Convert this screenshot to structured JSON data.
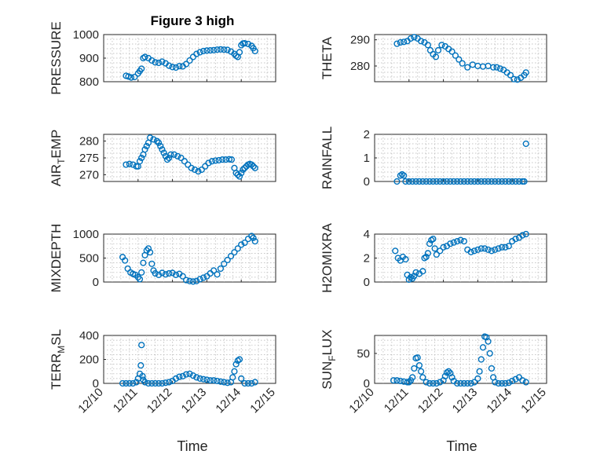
{
  "figure": {
    "title": "Figure 3 high",
    "xlabel": "Time",
    "colors": {
      "marker": "#0072BD",
      "axis": "#262626",
      "grid": "#b3b3b3"
    }
  },
  "chart_data": [
    {
      "type": "scatter",
      "marker": "circle",
      "grid": true,
      "title": "Figure 3 high",
      "ylabel": "PRESSURE",
      "ylim": [
        800,
        1000
      ],
      "yticks": [
        800,
        900,
        1000
      ],
      "xlim": [
        10,
        15
      ],
      "xticks": [
        "12/10",
        "12/11",
        "12/12",
        "12/13",
        "12/14",
        "12/15"
      ],
      "x": [
        10.65,
        10.72,
        10.8,
        10.9,
        11.0,
        11.05,
        11.1,
        11.15,
        11.2,
        11.3,
        11.4,
        11.5,
        11.6,
        11.7,
        11.8,
        11.9,
        12.0,
        12.1,
        12.2,
        12.3,
        12.4,
        12.5,
        12.6,
        12.7,
        12.8,
        12.9,
        13.0,
        13.1,
        13.2,
        13.3,
        13.4,
        13.5,
        13.6,
        13.7,
        13.8,
        13.85,
        13.9,
        13.95,
        14.0,
        14.05,
        14.1,
        14.2,
        14.3,
        14.35,
        14.4
      ],
      "y": [
        825,
        822,
        818,
        820,
        835,
        845,
        855,
        900,
        905,
        900,
        890,
        882,
        880,
        885,
        878,
        868,
        862,
        860,
        866,
        865,
        875,
        890,
        905,
        918,
        925,
        930,
        932,
        933,
        934,
        936,
        937,
        936,
        935,
        928,
        918,
        910,
        905,
        925,
        955,
        962,
        963,
        960,
        952,
        942,
        930
      ]
    },
    {
      "type": "scatter",
      "marker": "circle",
      "grid": true,
      "ylabel": "THETA",
      "ylim": [
        274,
        292
      ],
      "yticks": [
        280,
        290
      ],
      "xlim": [
        10,
        15
      ],
      "xticks": [
        "12/10",
        "12/11",
        "12/12",
        "12/13",
        "12/14",
        "12/15"
      ],
      "x": [
        10.65,
        10.75,
        10.85,
        10.95,
        11.05,
        11.15,
        11.25,
        11.35,
        11.45,
        11.55,
        11.62,
        11.7,
        11.78,
        11.85,
        11.95,
        12.05,
        12.15,
        12.25,
        12.35,
        12.45,
        12.55,
        12.7,
        12.85,
        13.0,
        13.15,
        13.3,
        13.45,
        13.55,
        13.65,
        13.75,
        13.85,
        13.95,
        14.05,
        14.15,
        14.25,
        14.35,
        14.4
      ],
      "y": [
        288.5,
        289,
        289.2,
        289.5,
        290.5,
        291,
        290.5,
        289.5,
        289,
        288,
        286,
        284.5,
        283.5,
        286,
        288,
        287.5,
        286.5,
        285.5,
        284,
        282.5,
        281,
        279.5,
        280.5,
        280,
        279.8,
        280,
        279.5,
        279.5,
        279,
        278.5,
        277.5,
        276.5,
        275,
        274.8,
        275.5,
        276.5,
        277.5
      ]
    },
    {
      "type": "scatter",
      "marker": "circle",
      "grid": true,
      "ylabel": "AIR_TEMP",
      "ylim": [
        268,
        282
      ],
      "yticks": [
        270,
        275,
        280
      ],
      "xlim": [
        10,
        15
      ],
      "xticks": [
        "12/10",
        "12/11",
        "12/12",
        "12/13",
        "12/14",
        "12/15"
      ],
      "x": [
        10.65,
        10.75,
        10.85,
        10.95,
        11.0,
        11.05,
        11.1,
        11.15,
        11.2,
        11.25,
        11.3,
        11.35,
        11.45,
        11.55,
        11.6,
        11.65,
        11.7,
        11.75,
        11.8,
        11.85,
        11.9,
        11.95,
        12.05,
        12.15,
        12.25,
        12.35,
        12.45,
        12.55,
        12.65,
        12.75,
        12.85,
        12.95,
        13.05,
        13.15,
        13.25,
        13.35,
        13.45,
        13.55,
        13.65,
        13.72,
        13.8,
        13.85,
        13.9,
        13.95,
        14.0,
        14.05,
        14.1,
        14.15,
        14.2,
        14.25,
        14.3,
        14.35,
        14.4
      ],
      "y": [
        273,
        273.2,
        273,
        272.5,
        272.5,
        274,
        275,
        276,
        277.5,
        278.5,
        279.5,
        281,
        280.5,
        280,
        279.5,
        278.5,
        277.5,
        276.5,
        275.5,
        274.5,
        275,
        276,
        276,
        275.5,
        275,
        274,
        273,
        272,
        271.5,
        271,
        271.5,
        272.5,
        273.5,
        274,
        274.2,
        274.3,
        274.5,
        274.5,
        274.6,
        274.5,
        272,
        270.5,
        270,
        269.5,
        270.5,
        271.5,
        272,
        272.5,
        273,
        273.2,
        273,
        272.5,
        272
      ]
    },
    {
      "type": "scatter",
      "marker": "circle",
      "grid": true,
      "ylabel": "RAINFALL",
      "ylim": [
        0,
        2
      ],
      "yticks": [
        0,
        1,
        2
      ],
      "xlim": [
        10,
        15
      ],
      "xticks": [
        "12/10",
        "12/11",
        "12/12",
        "12/13",
        "12/14",
        "12/15"
      ],
      "x": [
        10.65,
        10.75,
        10.8,
        10.85,
        10.9,
        11.0,
        11.1,
        11.2,
        11.3,
        11.4,
        11.5,
        11.6,
        11.7,
        11.8,
        11.9,
        12.0,
        12.1,
        12.2,
        12.3,
        12.4,
        12.5,
        12.6,
        12.7,
        12.8,
        12.9,
        13.0,
        13.1,
        13.2,
        13.3,
        13.4,
        13.5,
        13.6,
        13.7,
        13.8,
        13.9,
        14.0,
        14.1,
        14.2,
        14.3,
        14.35,
        14.4
      ],
      "y": [
        0,
        0.25,
        0.3,
        0.25,
        0,
        0,
        0,
        0,
        0,
        0,
        0,
        0,
        0,
        0,
        0,
        0,
        0,
        0,
        0,
        0,
        0,
        0,
        0,
        0,
        0,
        0,
        0,
        0,
        0,
        0,
        0,
        0,
        0,
        0,
        0,
        0,
        0,
        0,
        0,
        0,
        1.6
      ]
    },
    {
      "type": "scatter",
      "marker": "circle",
      "grid": true,
      "ylabel": "MIXDEPTH",
      "ylim": [
        0,
        1000
      ],
      "yticks": [
        0,
        500,
        1000
      ],
      "xlim": [
        10,
        15
      ],
      "xticks": [
        "12/10",
        "12/11",
        "12/12",
        "12/13",
        "12/14",
        "12/15"
      ],
      "x": [
        10.55,
        10.62,
        10.7,
        10.78,
        10.85,
        10.92,
        11.0,
        11.05,
        11.1,
        11.15,
        11.2,
        11.25,
        11.3,
        11.35,
        11.4,
        11.45,
        11.5,
        11.6,
        11.7,
        11.8,
        11.9,
        12.0,
        12.1,
        12.2,
        12.3,
        12.4,
        12.5,
        12.6,
        12.7,
        12.8,
        12.9,
        13.0,
        13.1,
        13.2,
        13.3,
        13.4,
        13.5,
        13.6,
        13.7,
        13.8,
        13.9,
        14.0,
        14.1,
        14.2,
        14.3,
        14.35,
        14.4
      ],
      "y": [
        520,
        450,
        280,
        200,
        170,
        150,
        100,
        60,
        200,
        400,
        560,
        660,
        700,
        620,
        380,
        240,
        180,
        150,
        190,
        160,
        180,
        190,
        150,
        170,
        120,
        40,
        20,
        10,
        20,
        60,
        90,
        120,
        180,
        240,
        160,
        280,
        380,
        460,
        540,
        620,
        700,
        780,
        820,
        900,
        960,
        920,
        850
      ]
    },
    {
      "type": "scatter",
      "marker": "circle",
      "grid": true,
      "ylabel": "H2OMIXRA",
      "ylim": [
        0,
        4
      ],
      "yticks": [
        0,
        2,
        4
      ],
      "xlim": [
        10,
        15
      ],
      "xticks": [
        "12/10",
        "12/11",
        "12/12",
        "12/13",
        "12/14",
        "12/15"
      ],
      "x": [
        10.6,
        10.68,
        10.75,
        10.82,
        10.9,
        10.95,
        11.0,
        11.05,
        11.1,
        11.15,
        11.2,
        11.3,
        11.4,
        11.45,
        11.5,
        11.55,
        11.6,
        11.65,
        11.7,
        11.75,
        11.8,
        11.9,
        12.0,
        12.1,
        12.2,
        12.3,
        12.4,
        12.5,
        12.6,
        12.7,
        12.8,
        12.9,
        13.0,
        13.1,
        13.2,
        13.3,
        13.4,
        13.5,
        13.6,
        13.7,
        13.8,
        13.9,
        14.0,
        14.1,
        14.2,
        14.3,
        14.4
      ],
      "y": [
        2.6,
        2.0,
        1.8,
        2.1,
        1.9,
        0.6,
        0.2,
        0.4,
        0.3,
        0.5,
        0.8,
        0.7,
        0.9,
        2.0,
        2.1,
        2.4,
        3.2,
        3.5,
        3.6,
        2.8,
        2.3,
        2.6,
        2.9,
        3.0,
        3.2,
        3.3,
        3.4,
        3.5,
        3.4,
        2.7,
        2.5,
        2.6,
        2.7,
        2.8,
        2.8,
        2.7,
        2.6,
        2.7,
        2.8,
        2.9,
        2.9,
        3.0,
        3.4,
        3.6,
        3.7,
        3.9,
        4.0
      ]
    },
    {
      "type": "scatter",
      "marker": "circle",
      "grid": true,
      "ylabel": "TERR_MSL",
      "ylim": [
        0,
        400
      ],
      "yticks": [
        0,
        200,
        400
      ],
      "xlim": [
        10,
        15
      ],
      "xticks": [
        "12/10",
        "12/11",
        "12/12",
        "12/13",
        "12/14",
        "12/15"
      ],
      "x": [
        10.55,
        10.65,
        10.75,
        10.85,
        10.95,
        11.0,
        11.05,
        11.08,
        11.1,
        11.13,
        11.15,
        11.2,
        11.3,
        11.4,
        11.5,
        11.6,
        11.7,
        11.8,
        11.9,
        12.0,
        12.1,
        12.2,
        12.3,
        12.4,
        12.5,
        12.6,
        12.7,
        12.8,
        12.9,
        13.0,
        13.1,
        13.2,
        13.3,
        13.4,
        13.5,
        13.6,
        13.7,
        13.75,
        13.8,
        13.85,
        13.9,
        13.95,
        14.0,
        14.1,
        14.2,
        14.3,
        14.4
      ],
      "y": [
        0,
        0,
        0,
        0,
        10,
        40,
        80,
        150,
        320,
        60,
        30,
        10,
        0,
        0,
        0,
        0,
        0,
        5,
        10,
        20,
        40,
        55,
        60,
        75,
        80,
        65,
        50,
        40,
        35,
        30,
        25,
        25,
        20,
        15,
        10,
        5,
        10,
        50,
        100,
        160,
        190,
        200,
        40,
        0,
        0,
        0,
        10
      ]
    },
    {
      "type": "scatter",
      "marker": "circle",
      "grid": true,
      "ylabel": "SUN_FLUX",
      "ylim": [
        0,
        80
      ],
      "yticks": [
        0,
        50
      ],
      "xlim": [
        10,
        15
      ],
      "xticks": [
        "12/10",
        "12/11",
        "12/12",
        "12/13",
        "12/14",
        "12/15"
      ],
      "x": [
        10.55,
        10.65,
        10.75,
        10.85,
        10.95,
        11.0,
        11.05,
        11.1,
        11.15,
        11.2,
        11.25,
        11.3,
        11.35,
        11.4,
        11.5,
        11.6,
        11.7,
        11.8,
        11.9,
        12.0,
        12.05,
        12.1,
        12.15,
        12.2,
        12.25,
        12.3,
        12.4,
        12.5,
        12.6,
        12.7,
        12.8,
        12.9,
        13.0,
        13.05,
        13.1,
        13.15,
        13.2,
        13.25,
        13.3,
        13.35,
        13.4,
        13.45,
        13.5,
        13.6,
        13.7,
        13.8,
        13.9,
        14.0,
        14.1,
        14.2,
        14.3,
        14.4
      ],
      "y": [
        5,
        5,
        4,
        3,
        2,
        2,
        5,
        10,
        25,
        42,
        43,
        30,
        20,
        10,
        2,
        0,
        0,
        0,
        2,
        5,
        12,
        18,
        20,
        17,
        10,
        4,
        0,
        0,
        0,
        0,
        0,
        2,
        8,
        20,
        40,
        60,
        78,
        77,
        70,
        50,
        25,
        10,
        2,
        0,
        0,
        0,
        1,
        4,
        7,
        10,
        5,
        2
      ]
    }
  ]
}
